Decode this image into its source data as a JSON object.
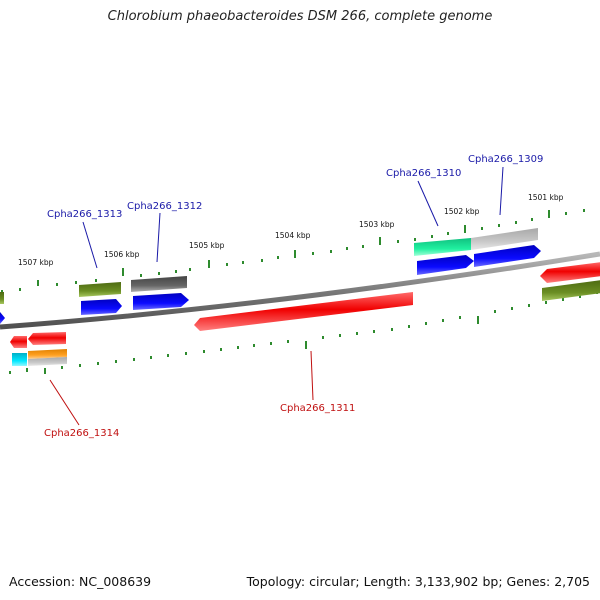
{
  "title": "Chlorobium phaeobacteroides DSM 266, complete genome",
  "footer": {
    "accession": "Accession: NC_008639",
    "info": "Topology: circular; Length: 3,133,902 bp; Genes: 2,705"
  },
  "ruler": {
    "kbp_labels": [
      "1507 kbp",
      "1506 kbp",
      "1505 kbp",
      "1504 kbp",
      "1503 kbp",
      "1502 kbp",
      "1501 kbp"
    ]
  },
  "gene_labels": [
    {
      "text": "Cpha266_1313",
      "color": "#1a1aa8"
    },
    {
      "text": "Cpha266_1312",
      "color": "#1a1aa8"
    },
    {
      "text": "Cpha266_1310",
      "color": "#1a1aa8"
    },
    {
      "text": "Cpha266_1309",
      "color": "#1a1aa8"
    },
    {
      "text": "Cpha266_1311",
      "color": "#c01010"
    },
    {
      "text": "Cpha266_1314",
      "color": "#c01010"
    }
  ],
  "colors": {
    "cds": "#ff0000",
    "blue_feature": "#1010e0",
    "olive_feature": "#6b8e23",
    "dark_gray_feature": "#606060",
    "light_gray_feature": "#c0c0c0",
    "teal_feature": "#20e8a0",
    "cyan_feature": "#00e0f0",
    "orange_feature": "#f5a020",
    "tick_green": "#2e8b2e",
    "backbone": "#808080"
  }
}
